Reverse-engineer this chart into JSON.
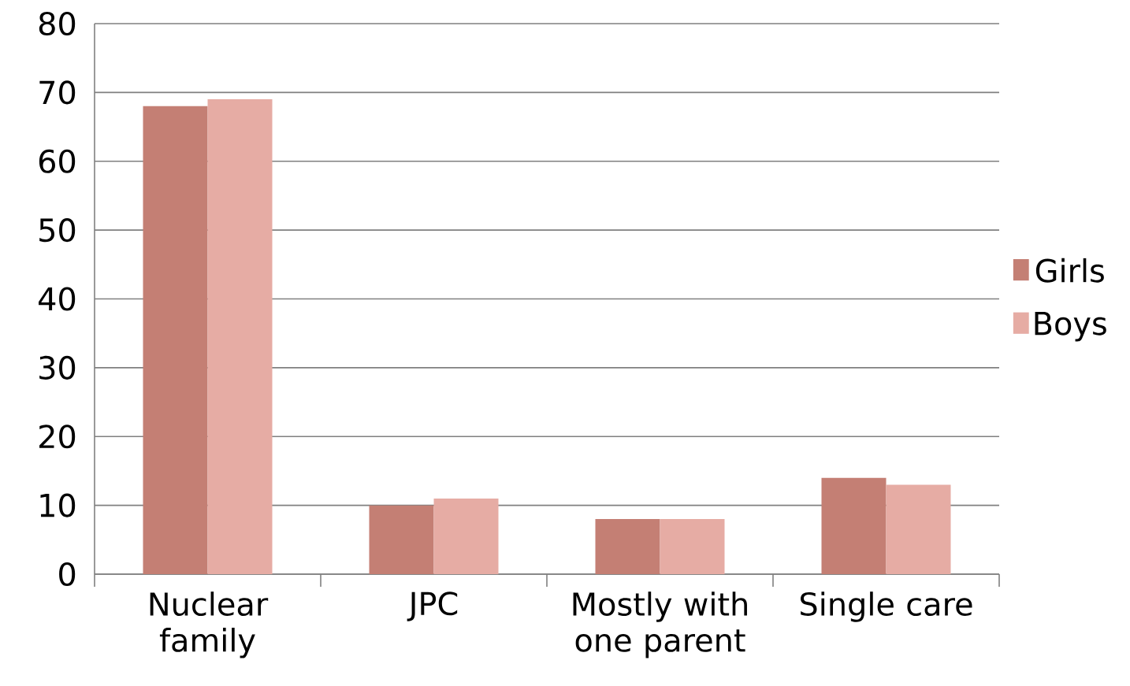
{
  "chart_data": {
    "type": "bar",
    "categories": [
      "Nuclear family",
      "JPC",
      "Mostly with one parent",
      "Single care"
    ],
    "series": [
      {
        "name": "Girls",
        "color": "#c47f74",
        "values": [
          68,
          10,
          8,
          14
        ]
      },
      {
        "name": "Boys",
        "color": "#e6aca4",
        "values": [
          69,
          11,
          8,
          13
        ]
      }
    ],
    "ylim": [
      0,
      80
    ],
    "yticks": [
      0,
      10,
      20,
      30,
      40,
      50,
      60,
      70,
      80
    ],
    "grid": "y",
    "legend": "right"
  }
}
